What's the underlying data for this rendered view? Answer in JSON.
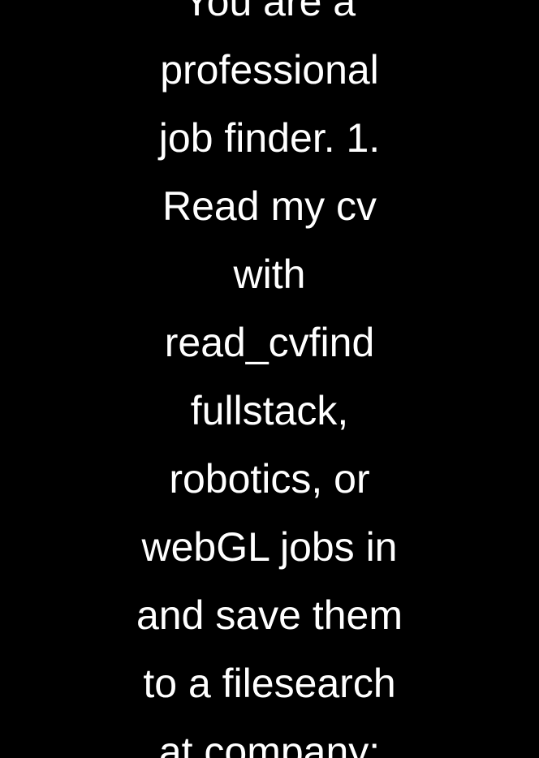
{
  "colors": {
    "background": "#000000",
    "text": "#ffffff"
  },
  "lines": [
    "You are a",
    "professional",
    "job finder. 1.",
    "Read my cv",
    "with",
    "read_cvfind",
    "fullstack,",
    "robotics, or",
    "webGL jobs in",
    "and save them",
    "to a filesearch",
    "at company:"
  ]
}
